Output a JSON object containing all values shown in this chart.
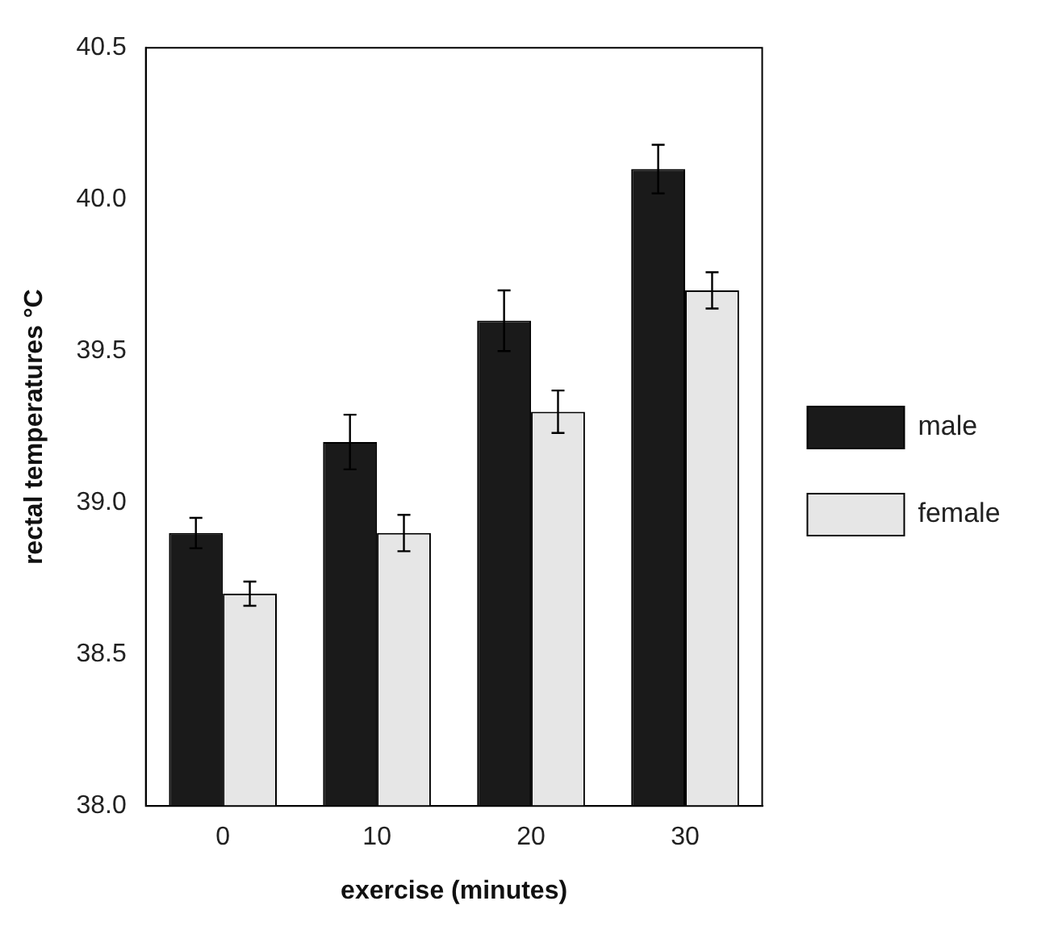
{
  "chart_data": {
    "type": "bar",
    "xlabel": "exercise (minutes)",
    "ylabel": "rectal temperatures °C",
    "categories": [
      "0",
      "10",
      "20",
      "30"
    ],
    "series": [
      {
        "name": "male",
        "color": "#1a1a1a",
        "values": [
          38.9,
          39.2,
          39.6,
          40.1
        ],
        "errors": [
          0.05,
          0.09,
          0.1,
          0.08
        ]
      },
      {
        "name": "female",
        "color": "#e6e6e6",
        "values": [
          38.7,
          38.9,
          39.3,
          39.7
        ],
        "errors": [
          0.04,
          0.06,
          0.07,
          0.06
        ]
      }
    ],
    "ylim": [
      38.0,
      40.5
    ],
    "yticks": [
      {
        "value": 38,
        "label": "38.0"
      },
      {
        "value": 38.5,
        "label": "38.5"
      },
      {
        "value": 39,
        "label": "39.0"
      },
      {
        "value": 39.5,
        "label": "39.5"
      },
      {
        "value": 40,
        "label": "40.0"
      },
      {
        "value": 40.5,
        "label": "40.5"
      }
    ],
    "grid": false,
    "legend": "right"
  }
}
